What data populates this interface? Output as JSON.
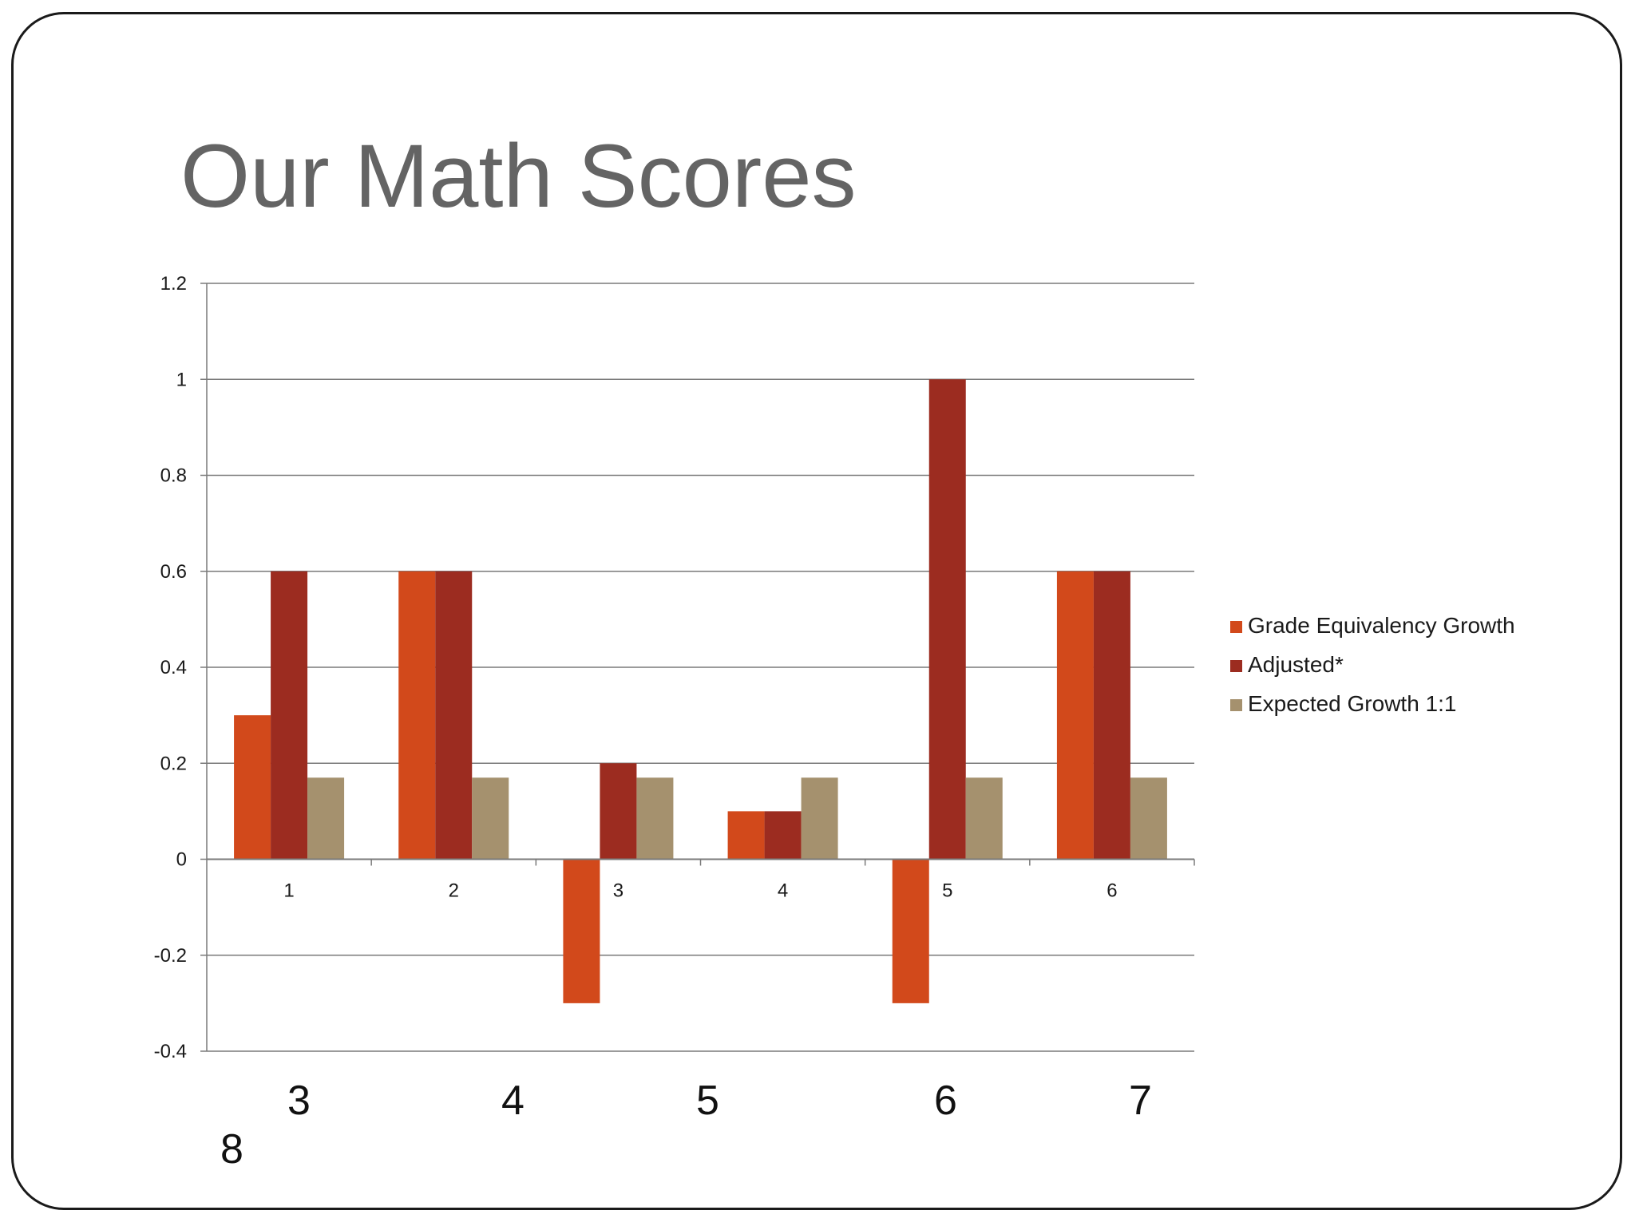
{
  "slide": {
    "title": "Our Math Scores"
  },
  "chart_data": {
    "type": "bar",
    "categories": [
      "1",
      "2",
      "3",
      "4",
      "5",
      "6"
    ],
    "series": [
      {
        "name": "Grade Equivalency Growth",
        "values": [
          0.3,
          0.6,
          -0.3,
          0.1,
          -0.3,
          0.6
        ],
        "color": "#D2491B"
      },
      {
        "name": "Adjusted*",
        "values": [
          0.6,
          0.6,
          0.2,
          0.1,
          1.0,
          0.6
        ],
        "color": "#9C2C20"
      },
      {
        "name": "Expected Growth 1:1",
        "values": [
          0.17,
          0.17,
          0.17,
          0.17,
          0.17,
          0.17
        ],
        "color": "#A5916E"
      }
    ],
    "yticks": [
      "1.2",
      "1",
      "0.8",
      "0.6",
      "0.4",
      "0.2",
      "0",
      "-0.2",
      "-0.4"
    ],
    "ylim": [
      -0.4,
      1.2
    ],
    "grid": true,
    "legend_position": "right"
  },
  "overlay_labels": [
    "3",
    "4",
    "5",
    "6",
    "7",
    "8"
  ]
}
